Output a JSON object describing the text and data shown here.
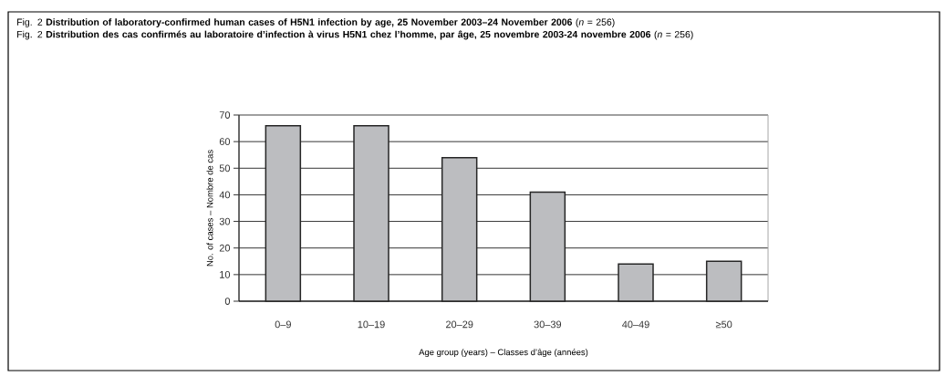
{
  "chart_data": {
    "type": "bar",
    "title": "Fig. 2 **Distribution of laboratory-confirmed human cases of H5N1 infection by age, 25 November 2003–24 November 2006** (*n* = 256)",
    "subtitle": "Fig. 2 **Distribution des cas confirmés au laboratoire d’infection à virus H5N1 chez l’homme, par âge, 25 novembre 2003-24 novembre 2006** (*n* = 256)",
    "xlabel": "Age group (years) – Classes d’âge (années)",
    "ylabel": "No. of cases – Nombre de cas",
    "categories": [
      "0–9",
      "10–19",
      "20–29",
      "30–39",
      "40–49",
      "≥50"
    ],
    "values": [
      66,
      66,
      54,
      41,
      14,
      15
    ],
    "color": "#bcbdc0",
    "ylim": [
      0,
      70
    ],
    "yticks": [
      0,
      10,
      20,
      30,
      40,
      50,
      60,
      70
    ],
    "grid": "y"
  }
}
